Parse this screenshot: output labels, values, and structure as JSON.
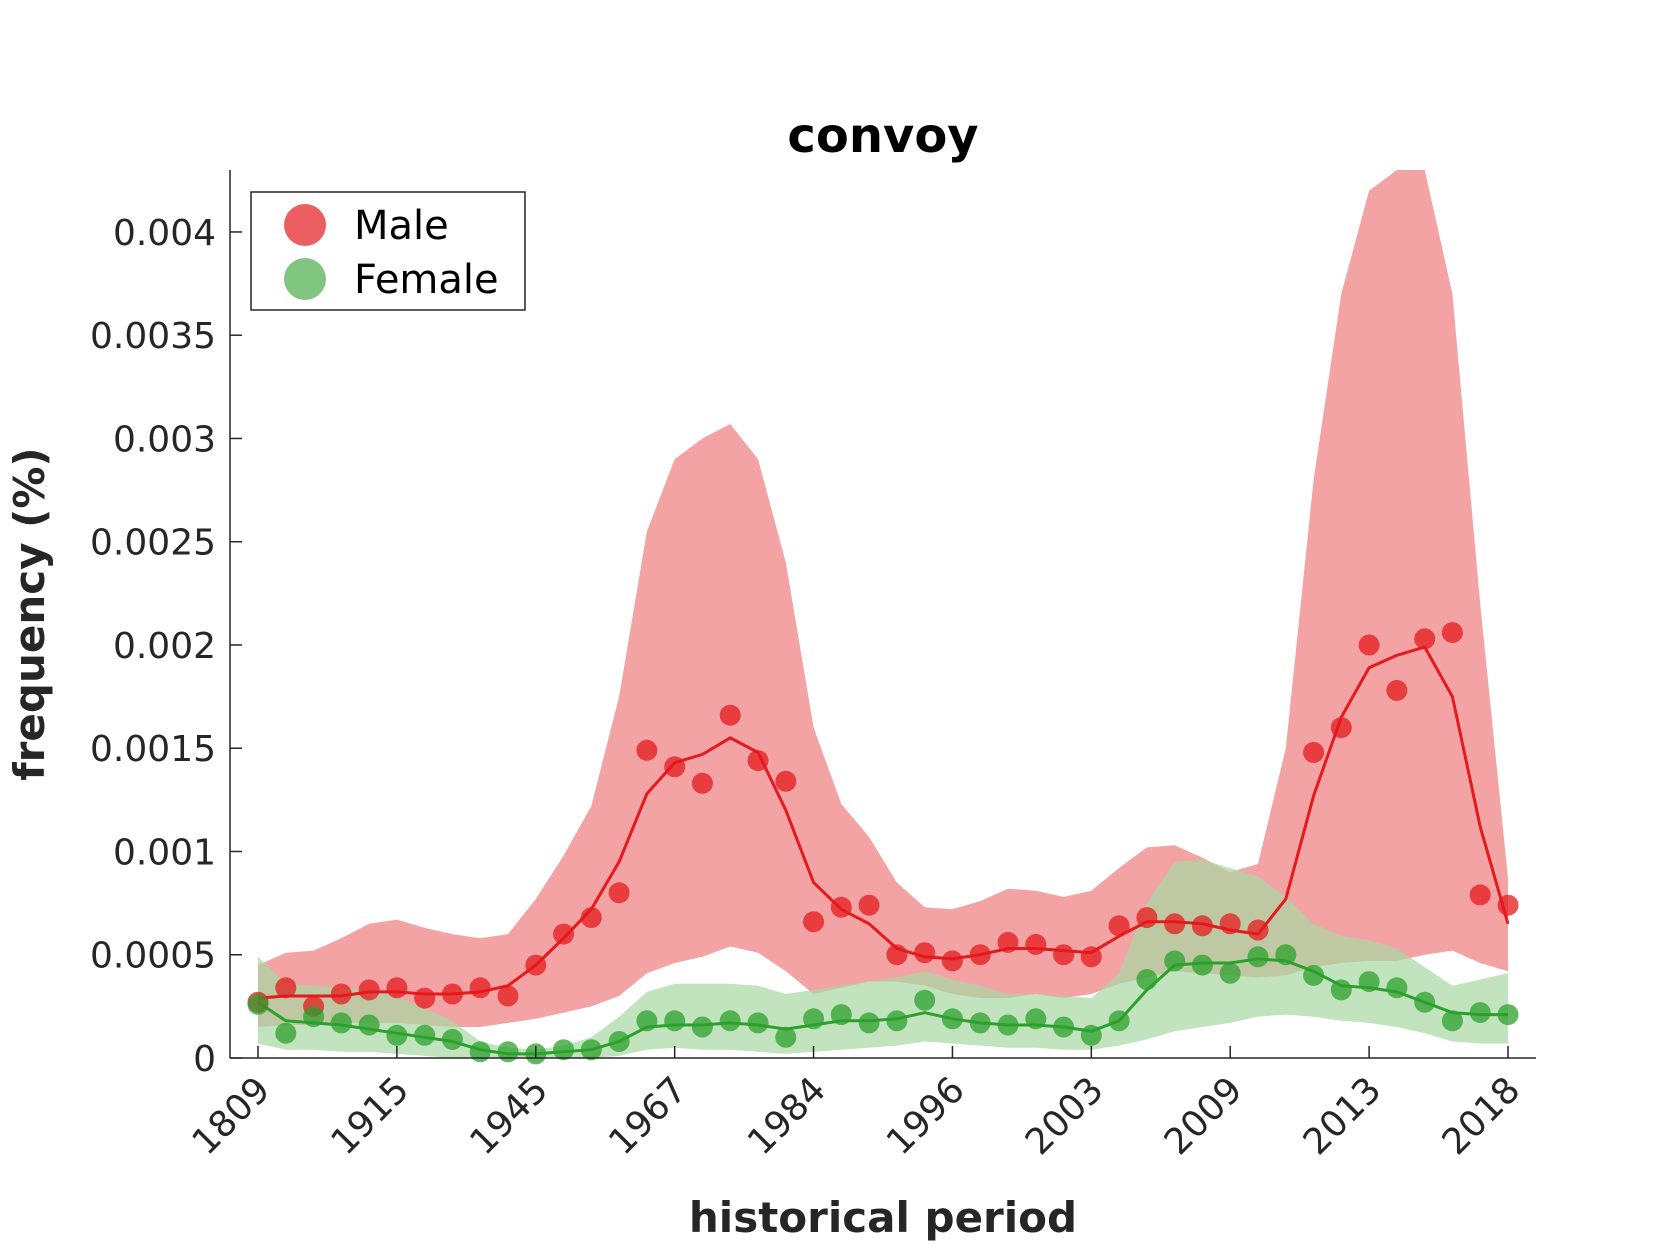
{
  "chart_data": {
    "type": "line",
    "title": "convoy",
    "xlabel": "historical period",
    "ylabel": "frequency (%)",
    "x_tick_labels": [
      "1809",
      "1915",
      "1945",
      "1967",
      "1984",
      "1996",
      "2003",
      "2009",
      "2013",
      "2018"
    ],
    "y_ticks": [
      0,
      0.0005,
      0.001,
      0.0015,
      0.002,
      0.0025,
      0.003,
      0.0035,
      0.004
    ],
    "y_tick_labels": [
      "0",
      "0.0005",
      "0.001",
      "0.0015",
      "0.002",
      "0.0025",
      "0.003",
      "0.0035",
      "0.004"
    ],
    "ylim": [
      0,
      0.0043
    ],
    "xlim": [
      0,
      45
    ],
    "legend_position": "top-left",
    "series": [
      {
        "name": "Male",
        "color": "#e41a1c",
        "band_color": "#f4a3a5",
        "points": [
          0.00027,
          0.00034,
          0.00025,
          0.00031,
          0.00033,
          0.00034,
          0.00029,
          0.00031,
          0.00034,
          0.0003,
          0.00045,
          0.0006,
          0.00068,
          0.0008,
          0.00149,
          0.00141,
          0.00133,
          0.00166,
          0.00144,
          0.00134,
          0.00066,
          0.00073,
          0.00074,
          0.0005,
          0.00051,
          0.00047,
          0.0005,
          0.00056,
          0.00055,
          0.0005,
          0.00049,
          0.00064,
          0.00068,
          0.00065,
          0.00064,
          0.00065,
          0.00062,
          null,
          0.00148,
          0.0016,
          0.002,
          0.00178,
          0.00203,
          0.00206,
          0.00079,
          0.00074
        ],
        "trend": [
          0.00029,
          0.0003,
          0.0003,
          0.0003,
          0.00032,
          0.00032,
          0.00031,
          0.00031,
          0.00032,
          0.00035,
          0.00045,
          0.00058,
          0.00072,
          0.00095,
          0.00128,
          0.00143,
          0.00147,
          0.00155,
          0.00148,
          0.0012,
          0.00085,
          0.00072,
          0.00065,
          0.00053,
          0.00049,
          0.00048,
          0.0005,
          0.00053,
          0.00053,
          0.00052,
          0.00051,
          0.00059,
          0.00066,
          0.00066,
          0.00065,
          0.00062,
          0.0006,
          0.00077,
          0.00127,
          0.00165,
          0.00189,
          0.00195,
          0.00199,
          0.00175,
          0.00112,
          0.00065
        ],
        "band_upper": [
          0.00045,
          0.00051,
          0.00052,
          0.00058,
          0.00065,
          0.00067,
          0.00063,
          0.0006,
          0.00058,
          0.0006,
          0.00077,
          0.00098,
          0.00122,
          0.00175,
          0.00255,
          0.0029,
          0.003,
          0.00307,
          0.0029,
          0.0024,
          0.0016,
          0.00123,
          0.00107,
          0.00085,
          0.00073,
          0.00072,
          0.00076,
          0.00082,
          0.00081,
          0.00078,
          0.00081,
          0.00092,
          0.00102,
          0.00103,
          0.00097,
          0.0009,
          0.00094,
          0.0015,
          0.0028,
          0.0037,
          0.0042,
          0.0043,
          0.0043,
          0.0037,
          0.0022,
          0.00087
        ],
        "band_lower": [
          0.00015,
          0.00016,
          0.00016,
          0.00017,
          0.00017,
          0.00017,
          0.00016,
          0.00015,
          0.00015,
          0.00017,
          0.00019,
          0.00022,
          0.00025,
          0.0003,
          0.00041,
          0.00046,
          0.00049,
          0.00054,
          0.00051,
          0.00042,
          0.00031,
          0.00034,
          0.00037,
          0.00037,
          0.00035,
          0.00031,
          0.00029,
          0.00029,
          0.00031,
          0.00029,
          0.00031,
          0.00036,
          0.00039,
          0.00042,
          0.00041,
          0.0004,
          0.00039,
          0.0004,
          0.00044,
          0.00046,
          0.00047,
          0.00047,
          0.0005,
          0.00052,
          0.00046,
          0.00042
        ]
      },
      {
        "name": "Female",
        "color": "#2ca02c",
        "band_color": "#a6d8a3",
        "points": [
          0.00026,
          0.00012,
          0.0002,
          0.00017,
          0.00016,
          0.00011,
          0.00011,
          9e-05,
          3e-05,
          3e-05,
          2e-05,
          4e-05,
          4e-05,
          8e-05,
          0.00018,
          0.00018,
          0.00015,
          0.00018,
          0.00017,
          0.0001,
          0.00019,
          0.00021,
          0.00017,
          0.00018,
          0.00028,
          0.00019,
          0.00017,
          0.00016,
          0.00019,
          0.00015,
          0.00011,
          0.00018,
          0.00038,
          0.00047,
          0.00045,
          0.00041,
          0.00049,
          0.0005,
          0.0004,
          0.00033,
          0.00037,
          0.00034,
          0.00027,
          0.00018,
          0.00022,
          0.00021
        ],
        "trend": [
          0.00027,
          0.00018,
          0.00017,
          0.00016,
          0.00014,
          0.00012,
          0.0001,
          8e-05,
          4e-05,
          2e-05,
          2e-05,
          3e-05,
          4e-05,
          8e-05,
          0.00015,
          0.00016,
          0.00016,
          0.00017,
          0.00016,
          0.00014,
          0.00016,
          0.00018,
          0.00018,
          0.00019,
          0.00022,
          0.00019,
          0.00017,
          0.00016,
          0.00016,
          0.00015,
          0.00013,
          0.00018,
          0.00033,
          0.00045,
          0.00046,
          0.00046,
          0.00048,
          0.00047,
          0.00042,
          0.00035,
          0.00034,
          0.00032,
          0.00027,
          0.00022,
          0.00021,
          0.00021
        ],
        "band_upper": [
          0.00049,
          0.00036,
          0.00035,
          0.00034,
          0.00033,
          0.0003,
          0.00024,
          0.00018,
          8e-05,
          5e-05,
          4e-05,
          6e-05,
          0.0001,
          0.0002,
          0.00032,
          0.00036,
          0.00036,
          0.00036,
          0.00035,
          0.00031,
          0.00033,
          0.00035,
          0.00037,
          0.00039,
          0.00042,
          0.00038,
          0.00035,
          0.00031,
          0.00031,
          0.0003,
          0.00029,
          0.00041,
          0.00075,
          0.00095,
          0.00096,
          0.00092,
          0.00088,
          0.00078,
          0.00065,
          0.00059,
          0.00057,
          0.00053,
          0.00044,
          0.00035,
          0.00038,
          0.00041
        ],
        "band_lower": [
          7e-05,
          4e-05,
          4e-05,
          3e-05,
          3e-05,
          2e-05,
          1e-05,
          0,
          0,
          0,
          0,
          0,
          0,
          1e-05,
          4e-05,
          5e-05,
          4e-05,
          4e-05,
          3e-05,
          2e-05,
          3e-05,
          4e-05,
          5e-05,
          6e-05,
          8e-05,
          7e-05,
          6e-05,
          5e-05,
          5e-05,
          4e-05,
          4e-05,
          6e-05,
          9e-05,
          0.00013,
          0.00015,
          0.00017,
          0.0002,
          0.00021,
          0.0002,
          0.00018,
          0.00017,
          0.00015,
          0.00012,
          8e-05,
          7e-05,
          7e-05
        ]
      }
    ]
  }
}
